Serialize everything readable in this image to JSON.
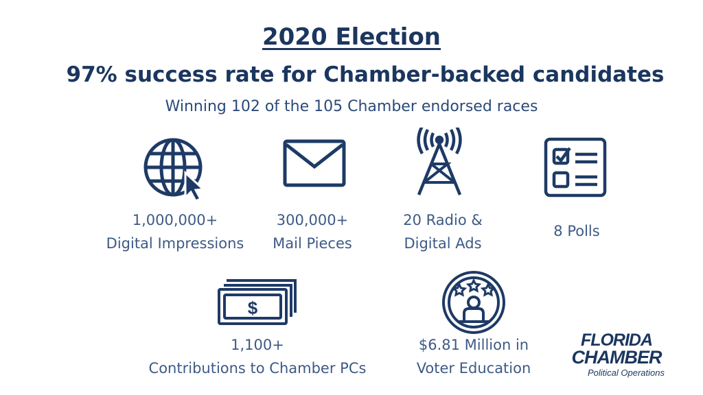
{
  "header": {
    "title": "2020 Election",
    "subtitle": "97% success rate for Chamber-backed candidates",
    "tagline": "Winning 102 of the 105 Chamber endorsed races"
  },
  "stats": [
    {
      "line1": "1,000,000+",
      "line2": "Digital Impressions",
      "icon": "globe-cursor-icon"
    },
    {
      "line1": "300,000+",
      "line2": "Mail Pieces",
      "icon": "envelope-icon"
    },
    {
      "line1": "20 Radio &",
      "line2": "Digital Ads",
      "icon": "radio-tower-icon"
    },
    {
      "line1": "8 Polls",
      "icon": "checklist-icon"
    },
    {
      "line1": "1,100+",
      "line2": "Contributions to Chamber PCs",
      "icon": "money-bills-icon"
    },
    {
      "line1": "$6.81 Million in",
      "line2": "Voter Education",
      "icon": "voter-stars-icon"
    }
  ],
  "logo": {
    "line1": "FLORIDA",
    "line2": "CHAMBER",
    "line3": "Political Operations"
  },
  "colors": {
    "navy": "#1b365f",
    "text": "#3d5a85"
  }
}
